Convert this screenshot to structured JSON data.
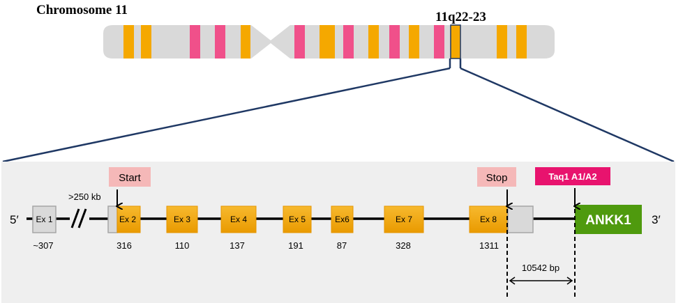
{
  "chromosome": {
    "title": "Chromosome 11",
    "locus": "11q22-23"
  },
  "gene": {
    "five_prime": "5′",
    "three_prime": "3′",
    "gap_label": ">250 kb",
    "start_label": "Start",
    "stop_label": "Stop",
    "taq_label": "Taq1 A1/A2",
    "ankk1_label": "ANKK1",
    "distance_label": "10542 bp",
    "exons": [
      {
        "label": "Ex 1",
        "size": "~307",
        "coding": false
      },
      {
        "label": "Ex 2",
        "size": "316",
        "coding": true
      },
      {
        "label": "Ex 3",
        "size": "110",
        "coding": true
      },
      {
        "label": "Ex 4",
        "size": "137",
        "coding": true
      },
      {
        "label": "Ex 5",
        "size": "191",
        "coding": true
      },
      {
        "label": "Ex6",
        "size": "87",
        "coding": true
      },
      {
        "label": "Ex 7",
        "size": "328",
        "coding": true
      },
      {
        "label": "Ex 8",
        "size": "1311",
        "coding": true
      }
    ]
  },
  "colors": {
    "exon_orange": "#F5A800",
    "band_pink": "#F0508A",
    "ankk1_green": "#4F9A0E",
    "taq_pink": "#E8136E",
    "label_pink": "#F5B8B8",
    "utr_gray": "#D9D9D9",
    "panel_bg": "#EFEFEF",
    "zoom_lines": "#1F3864"
  }
}
